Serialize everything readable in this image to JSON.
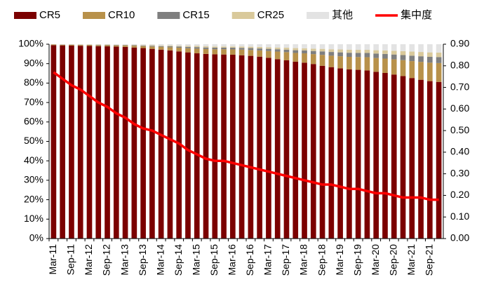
{
  "chart_data": {
    "type": "bar",
    "stacked": true,
    "grid": false,
    "legend": "top",
    "categories": [
      "Mar-11",
      null,
      "Sep-11",
      null,
      "Mar-12",
      null,
      "Sep-12",
      null,
      "Mar-13",
      null,
      "Sep-13",
      null,
      "Mar-14",
      null,
      "Sep-14",
      null,
      "Mar-15",
      null,
      "Sep-15",
      null,
      "Mar-16",
      null,
      "Sep-16",
      null,
      "Mar-17",
      null,
      "Sep-17",
      null,
      "Mar-18",
      null,
      "Sep-18",
      null,
      "Mar-19",
      null,
      "Sep-19",
      null,
      "Mar-20",
      null,
      "Sep-20",
      null,
      "Mar-21",
      null,
      "Sep-21",
      null
    ],
    "series": [
      {
        "name": "CR5",
        "type": "bar",
        "color": "#7b0000",
        "values": [
          99.5,
          99.4,
          99.3,
          99.2,
          99.1,
          99.0,
          98.9,
          98.8,
          98.6,
          98.3,
          98.0,
          97.6,
          97.2,
          96.8,
          96.3,
          95.8,
          95.3,
          95.0,
          94.8,
          94.7,
          94.6,
          94.3,
          94.0,
          93.6,
          93.0,
          92.3,
          91.7,
          91.0,
          90.5,
          89.8,
          88.9,
          88.2,
          87.6,
          87.0,
          86.8,
          86.5,
          85.8,
          85.2,
          84.4,
          83.6,
          82.6,
          81.7,
          81.0,
          80.6
        ]
      },
      {
        "name": "CR10",
        "type": "bar",
        "color": "#b8914a",
        "values": [
          0.3,
          0.3,
          0.4,
          0.4,
          0.5,
          0.5,
          0.6,
          0.6,
          0.7,
          0.9,
          1.0,
          1.2,
          1.4,
          1.6,
          1.9,
          2.1,
          2.4,
          2.5,
          2.6,
          2.7,
          2.7,
          2.9,
          3.0,
          3.2,
          3.5,
          3.9,
          4.2,
          4.5,
          4.8,
          5.1,
          5.6,
          5.9,
          6.2,
          6.5,
          6.6,
          6.8,
          7.1,
          7.4,
          7.8,
          8.2,
          8.7,
          9.2,
          9.5,
          9.7
        ]
      },
      {
        "name": "CR15",
        "type": "bar",
        "color": "#7f7f7f",
        "values": [
          0.1,
          0.1,
          0.1,
          0.1,
          0.1,
          0.2,
          0.2,
          0.2,
          0.2,
          0.3,
          0.3,
          0.4,
          0.4,
          0.5,
          0.6,
          0.7,
          0.8,
          0.8,
          0.8,
          0.8,
          0.9,
          0.9,
          1.0,
          1.0,
          1.1,
          1.2,
          1.3,
          1.4,
          1.5,
          1.6,
          1.8,
          1.9,
          2.0,
          2.1,
          2.1,
          2.2,
          2.3,
          2.4,
          2.5,
          2.6,
          2.8,
          2.9,
          3.0,
          3.1
        ]
      },
      {
        "name": "CR25",
        "type": "bar",
        "color": "#d9c99b",
        "values": [
          0.1,
          0.1,
          0.1,
          0.1,
          0.1,
          0.1,
          0.1,
          0.1,
          0.2,
          0.2,
          0.2,
          0.3,
          0.3,
          0.4,
          0.4,
          0.5,
          0.6,
          0.6,
          0.6,
          0.6,
          0.6,
          0.7,
          0.7,
          0.8,
          0.8,
          0.9,
          1.0,
          1.1,
          1.1,
          1.2,
          1.3,
          1.4,
          1.5,
          1.6,
          1.6,
          1.6,
          1.7,
          1.8,
          1.9,
          2.0,
          2.1,
          2.2,
          2.3,
          2.3
        ]
      },
      {
        "name": "其他",
        "type": "bar",
        "color": "#e3e3e3",
        "values": [
          0.0,
          0.1,
          0.1,
          0.2,
          0.2,
          0.2,
          0.2,
          0.3,
          0.3,
          0.3,
          0.5,
          0.5,
          0.7,
          0.7,
          0.8,
          0.9,
          0.9,
          1.1,
          1.2,
          1.2,
          1.2,
          1.2,
          1.3,
          1.4,
          1.6,
          1.7,
          1.8,
          2.0,
          2.1,
          2.3,
          2.4,
          2.6,
          2.7,
          2.8,
          2.9,
          2.9,
          3.1,
          3.2,
          3.4,
          3.6,
          3.8,
          4.0,
          4.2,
          4.3
        ]
      },
      {
        "name": "集中度",
        "type": "line",
        "axis": "y2",
        "color": "#ff0000",
        "values": [
          0.77,
          0.74,
          0.71,
          0.69,
          0.66,
          0.63,
          0.61,
          0.58,
          0.56,
          0.53,
          0.51,
          0.5,
          0.48,
          0.46,
          0.44,
          0.41,
          0.39,
          0.37,
          0.36,
          0.36,
          0.35,
          0.34,
          0.33,
          0.32,
          0.31,
          0.3,
          0.29,
          0.28,
          0.27,
          0.26,
          0.25,
          0.25,
          0.24,
          0.23,
          0.23,
          0.22,
          0.21,
          0.21,
          0.2,
          0.19,
          0.19,
          0.19,
          0.18,
          0.18
        ]
      }
    ],
    "ylim": [
      0,
      100
    ],
    "yticks": [
      {
        "value": 0,
        "label": "0%"
      },
      {
        "value": 10,
        "label": "10%"
      },
      {
        "value": 20,
        "label": "20%"
      },
      {
        "value": 30,
        "label": "30%"
      },
      {
        "value": 40,
        "label": "40%"
      },
      {
        "value": 50,
        "label": "50%"
      },
      {
        "value": 60,
        "label": "60%"
      },
      {
        "value": 70,
        "label": "70%"
      },
      {
        "value": 80,
        "label": "80%"
      },
      {
        "value": 90,
        "label": "90%"
      },
      {
        "value": 100,
        "label": "100%"
      }
    ],
    "y2lim": [
      0,
      0.9
    ],
    "y2ticks": [
      {
        "value": 0,
        "label": "0.00"
      },
      {
        "value": 0.1,
        "label": "0.10"
      },
      {
        "value": 0.2,
        "label": "0.20"
      },
      {
        "value": 0.3,
        "label": "0.30"
      },
      {
        "value": 0.4,
        "label": "0.40"
      },
      {
        "value": 0.5,
        "label": "0.50"
      },
      {
        "value": 0.6,
        "label": "0.60"
      },
      {
        "value": 0.7,
        "label": "0.70"
      },
      {
        "value": 0.8,
        "label": "0.80"
      },
      {
        "value": 0.9,
        "label": "0.90"
      }
    ]
  }
}
